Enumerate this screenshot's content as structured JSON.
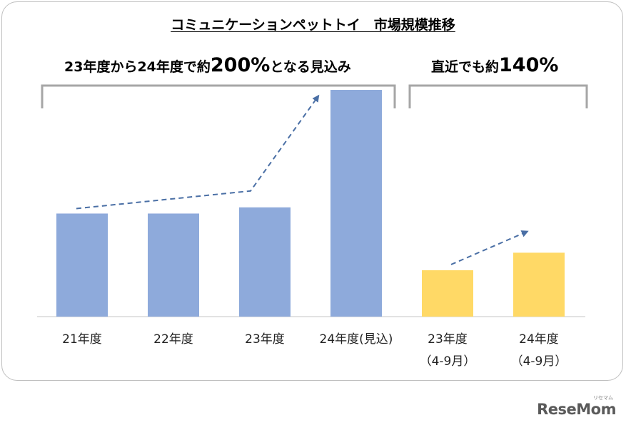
{
  "chart_data": {
    "type": "bar",
    "title": "コミュニケーションペットトイ　市場規模推移",
    "xlabel": "",
    "ylabel": "",
    "ylim": [
      0,
      220
    ],
    "groups": [
      {
        "annotation": {
          "text_before": "23年度から24年度で約",
          "value": "200%",
          "text_after": "となる見込み"
        },
        "color": "#8eaadb",
        "categories": [
          {
            "line1": "21年度",
            "line2": ""
          },
          {
            "line1": "22年度",
            "line2": ""
          },
          {
            "line1": "23年度",
            "line2": ""
          },
          {
            "line1": "24年度(見込)",
            "line2": ""
          }
        ],
        "values": [
          100,
          100,
          106,
          220
        ]
      },
      {
        "annotation": {
          "text_before": "直近でも約",
          "value": "140%",
          "text_after": ""
        },
        "color": "#ffd966",
        "categories": [
          {
            "line1": "23年度",
            "line2": "（4-9月）"
          },
          {
            "line1": "24年度",
            "line2": "（4-9月）"
          }
        ],
        "values": [
          45,
          62
        ]
      }
    ]
  },
  "brand": {
    "logo": "ReseMom",
    "kana": "リセマム"
  }
}
